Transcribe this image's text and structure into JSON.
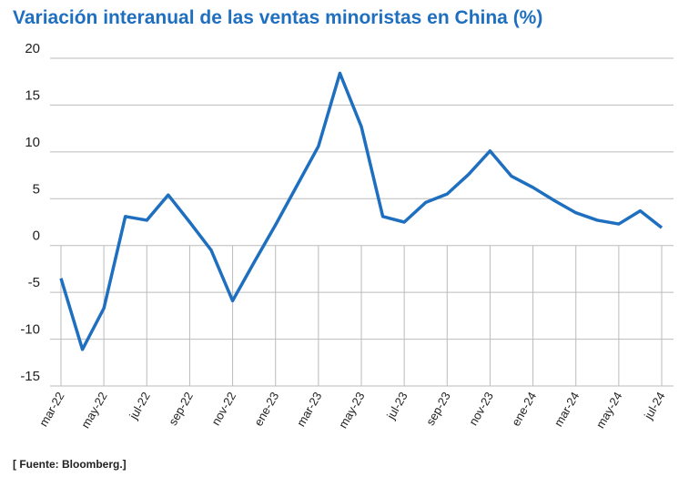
{
  "chart_data": {
    "type": "line",
    "title": "Variación interanual de las ventas minoristas en China (%)",
    "source": "[ Fuente: Bloomberg.]",
    "categories": [
      "mar-22",
      null,
      "may-22",
      null,
      "jul-22",
      null,
      "sep-22",
      null,
      "nov-22",
      null,
      "ene-23",
      null,
      "mar-23",
      null,
      "may-23",
      null,
      "jul-23",
      null,
      "sep-23",
      null,
      "nov-23",
      null,
      "ene-24",
      null,
      "mar-24",
      null,
      "may-24",
      null,
      "jul-24"
    ],
    "series": [
      {
        "name": "Ventas minoristas",
        "color": "#1f6fc0",
        "values": [
          -3.5,
          -11.1,
          -6.7,
          3.1,
          2.7,
          5.4,
          2.5,
          -0.5,
          -5.9,
          -1.8,
          2.2,
          6.4,
          10.6,
          18.4,
          12.7,
          3.1,
          2.5,
          4.6,
          5.5,
          7.6,
          10.1,
          7.4,
          6.2,
          4.8,
          3.5,
          2.7,
          2.3,
          3.7,
          1.9
        ]
      }
    ],
    "ylim": [
      -15,
      20
    ],
    "yticks": [
      -15,
      -10,
      -5,
      0,
      5,
      10,
      15,
      20
    ],
    "grid": true
  }
}
